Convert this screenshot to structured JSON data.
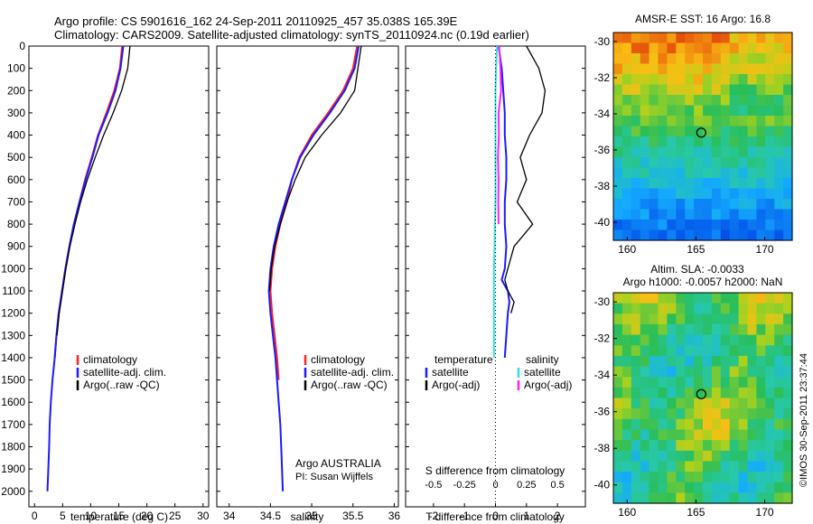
{
  "titles": {
    "line1": "Argo profile: CS 5901616_162 24-Sep-2011 20110925_457 35.038S 165.39E",
    "line2": "Climatology: CARS2009. Satellite-adjusted climatology: synTS_20110924.nc (0.19d earlier)"
  },
  "colors": {
    "climatology": "#ff2020",
    "satellite": "#1a1aff",
    "argo": "#000000",
    "satellite_salinity": "#30e0e0",
    "argo_salinity": "#ff20ff"
  },
  "depth_axis": {
    "ticks": [
      0,
      100,
      200,
      300,
      400,
      500,
      600,
      700,
      800,
      900,
      1000,
      1100,
      1200,
      1300,
      1400,
      1500,
      1600,
      1700,
      1800,
      1900,
      2000
    ]
  },
  "temp_panel": {
    "xlabel": "temperature (deg C)",
    "xticks": [
      "0",
      "5",
      "10",
      "15",
      "20",
      "25",
      "30"
    ],
    "legend": [
      "climatology",
      "satellite-adj. clim.",
      "Argo(..raw -QC)"
    ]
  },
  "sal_panel": {
    "xlabel": "salinity",
    "xticks": [
      "34",
      "34.5",
      "35",
      "35.5",
      "36"
    ],
    "legend": [
      "climatology",
      "satellite-adj. clim.",
      "Argo(..raw -QC)"
    ],
    "note1": "Argo AUSTRALIA",
    "note2": "PI: Susan Wijffels"
  },
  "diff_panel": {
    "xlabel": "T difference from climatology",
    "xticks": [
      "-2",
      "-1",
      "0",
      "1",
      "2"
    ],
    "top_label": "S difference from climatology",
    "top_ticks": [
      "-0.5",
      "-0.25",
      "0",
      "0.25",
      "0.5"
    ],
    "legend_t_title": "temperature",
    "legend_s_title": "salinity",
    "legend_t": [
      "satellite",
      "Argo(-adj)"
    ],
    "legend_s": [
      "satellite",
      "Argo(-adj)"
    ]
  },
  "map_sst": {
    "title": "AMSR-E SST: 16 Argo: 16.8",
    "yticks": [
      "-30",
      "-32",
      "-34",
      "-36",
      "-38",
      "-40"
    ],
    "xticks": [
      "160",
      "165",
      "170"
    ]
  },
  "map_sla": {
    "title1": "Altim. SLA: -0.0033",
    "title2": "Argo h1000: -0.0057 h2000: NaN",
    "yticks": [
      "-30",
      "-32",
      "-34",
      "-36",
      "-38",
      "-40"
    ],
    "xticks": [
      "160",
      "165",
      "170"
    ]
  },
  "credit": "©IMOS 30-Sep-2011 23:37:44",
  "chart_data": [
    {
      "type": "line",
      "xlabel": "temperature (deg C)",
      "ylabel": "",
      "xlim": [
        -1,
        31
      ],
      "ylim": [
        2070,
        0
      ],
      "legend": "bottom-right",
      "series": [
        {
          "name": "climatology",
          "color": "#ff2020",
          "x": [
            15.6,
            15.2,
            14.2,
            12.8,
            11.3,
            10.2,
            9.0,
            8.0,
            7.0,
            6.2,
            5.5,
            4.9,
            4.3,
            3.9,
            3.6
          ],
          "y": [
            0,
            100,
            200,
            300,
            400,
            500,
            600,
            700,
            800,
            900,
            1000,
            1100,
            1200,
            1300,
            1400
          ]
        },
        {
          "name": "satellite-adj. clim.",
          "color": "#1a1aff",
          "x": [
            15.8,
            15.3,
            14.4,
            13.0,
            11.4,
            10.3,
            9.1,
            8.0,
            7.0,
            6.2,
            5.5,
            4.9,
            4.3,
            3.9,
            3.6,
            3.2,
            2.9,
            2.7,
            2.6,
            2.45,
            2.3
          ],
          "y": [
            0,
            100,
            200,
            300,
            400,
            500,
            600,
            700,
            800,
            900,
            1000,
            1100,
            1200,
            1300,
            1400,
            1500,
            1600,
            1700,
            1800,
            1900,
            2000
          ]
        },
        {
          "name": "Argo(..raw -QC)",
          "color": "#000000",
          "x": [
            17.0,
            16.6,
            15.5,
            14.0,
            12.3,
            10.8,
            9.4,
            8.2,
            7.2,
            6.3,
            5.6,
            5.0,
            4.4,
            4.0
          ],
          "y": [
            0,
            100,
            200,
            300,
            400,
            500,
            600,
            700,
            800,
            900,
            1000,
            1100,
            1200,
            1300
          ]
        }
      ]
    },
    {
      "type": "line",
      "xlabel": "salinity",
      "ylabel": "",
      "xlim": [
        33.85,
        36.05
      ],
      "ylim": [
        2070,
        0
      ],
      "legend": "bottom-right",
      "series": [
        {
          "name": "climatology",
          "color": "#ff2020",
          "x": [
            35.55,
            35.5,
            35.38,
            35.2,
            35.0,
            34.85,
            34.76,
            34.7,
            34.62,
            34.56,
            34.52,
            34.5,
            34.52,
            34.55,
            34.58,
            34.6
          ],
          "y": [
            0,
            100,
            200,
            300,
            400,
            500,
            600,
            700,
            800,
            900,
            1000,
            1100,
            1200,
            1300,
            1400,
            1500
          ]
        },
        {
          "name": "satellite-adj. clim.",
          "color": "#1a1aff",
          "x": [
            35.57,
            35.52,
            35.4,
            35.22,
            35.02,
            34.86,
            34.76,
            34.68,
            34.6,
            34.54,
            34.5,
            34.48,
            34.5,
            34.53,
            34.56,
            34.58,
            34.6,
            34.62,
            34.63,
            34.64,
            34.65
          ],
          "y": [
            0,
            100,
            200,
            300,
            400,
            500,
            600,
            700,
            800,
            900,
            1000,
            1100,
            1200,
            1300,
            1400,
            1500,
            1600,
            1700,
            1800,
            1900,
            2000
          ]
        },
        {
          "name": "Argo(..raw -QC)",
          "color": "#000000",
          "x": [
            35.6,
            35.56,
            35.52,
            35.35,
            35.12,
            34.92,
            34.8,
            34.7,
            34.62,
            34.55,
            34.51,
            34.49
          ],
          "y": [
            0,
            100,
            200,
            300,
            400,
            500,
            600,
            700,
            800,
            900,
            1000,
            1100
          ]
        }
      ]
    },
    {
      "type": "line",
      "xlabel": "T difference from climatology",
      "ylabel": "",
      "xlim": [
        -2.9,
        2.9
      ],
      "ylim": [
        2070,
        0
      ],
      "legend": "bottom-right",
      "series": [
        {
          "name": "temperature satellite",
          "color": "#1a1aff",
          "x": [
            0.1,
            0.2,
            0.25,
            0.3,
            0.3,
            0.35,
            0.35,
            0.3,
            0.3,
            0.35,
            0.3,
            0.2,
            0.4,
            0.45,
            0.4,
            0.35,
            0.3
          ],
          "y": [
            0,
            100,
            200,
            300,
            400,
            500,
            600,
            700,
            800,
            900,
            1000,
            1050,
            1100,
            1150,
            1200,
            1300,
            1400
          ]
        },
        {
          "name": "temperature Argo(-adj)",
          "color": "#000000",
          "x": [
            1.0,
            1.4,
            1.6,
            1.5,
            1.1,
            0.8,
            1.0,
            0.7,
            1.2,
            0.6,
            0.4,
            0.3,
            0.4,
            0.6,
            0.5
          ],
          "y": [
            0,
            100,
            200,
            300,
            400,
            500,
            600,
            700,
            800,
            900,
            1000,
            1050,
            1100,
            1150,
            1200
          ]
        },
        {
          "name": "salinity satellite",
          "color": "#30e0e0",
          "x": [
            0.05,
            0.02,
            0.0,
            0.0,
            0.0,
            0.0,
            0.0,
            0.0,
            -0.02,
            -0.03,
            -0.05,
            -0.05,
            -0.05,
            -0.05,
            -0.05
          ],
          "y": [
            0,
            100,
            200,
            300,
            400,
            500,
            600,
            700,
            800,
            900,
            1000,
            1100,
            1200,
            1300,
            1400
          ]
        },
        {
          "name": "salinity Argo(-adj)",
          "color": "#ff20ff",
          "x": [
            0.12,
            0.16,
            0.18,
            0.1,
            0.11,
            0.08,
            0.1,
            0.09,
            0.1
          ],
          "y": [
            0,
            100,
            200,
            300,
            400,
            500,
            600,
            700,
            800
          ]
        }
      ]
    },
    {
      "type": "heatmap",
      "title": "AMSR-E SST: 16 Argo: 16.8",
      "xlim": [
        159,
        172
      ],
      "ylim": [
        -41,
        -29.5
      ],
      "xticks": [
        160,
        165,
        170
      ],
      "yticks": [
        -30,
        -32,
        -34,
        -36,
        -38,
        -40
      ],
      "marker": {
        "lon": 165.39,
        "lat": -35.04
      }
    },
    {
      "type": "heatmap",
      "title": "Altim. SLA: -0.0033 / Argo h1000: -0.0057 h2000: NaN",
      "xlim": [
        159,
        172
      ],
      "ylim": [
        -41,
        -29.5
      ],
      "xticks": [
        160,
        165,
        170
      ],
      "yticks": [
        -30,
        -32,
        -34,
        -36,
        -38,
        -40
      ],
      "marker": {
        "lon": 165.39,
        "lat": -35.04
      }
    }
  ]
}
